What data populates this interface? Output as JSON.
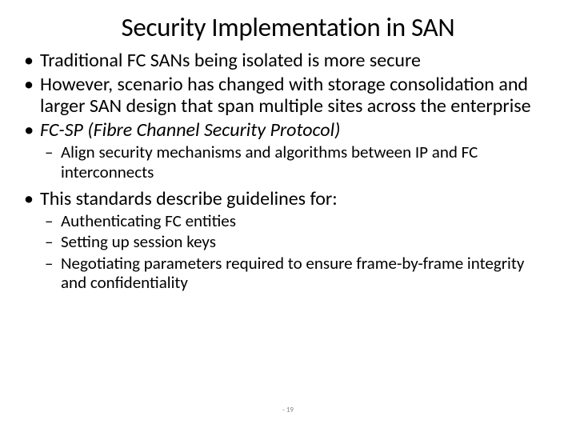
{
  "title": "Security Implementation in SAN",
  "bullets": {
    "b1": "Traditional FC SANs being isolated is more secure",
    "b2": "However, scenario has changed with storage consolidation and larger SAN design that span multiple sites across the enterprise",
    "b3": "FC-SP (Fibre Channel Security Protocol)",
    "b3s1": "Align security mechanisms and algorithms between IP and FC interconnects",
    "b4": "This standards describe guidelines for:",
    "b4s1": "Authenticating FC entities",
    "b4s2": "Setting up session keys",
    "b4s3": "Negotiating parameters required to ensure frame-by-frame integrity and confidentiality"
  },
  "page_number": "19",
  "styling": {
    "background_color": "#ffffff",
    "text_color": "#000000",
    "title_fontsize": 33,
    "bullet_l1_fontsize": 24,
    "bullet_l2_fontsize": 21,
    "font_family": "Calibri",
    "page_number_color": "#888888",
    "page_number_fontsize": 9
  }
}
